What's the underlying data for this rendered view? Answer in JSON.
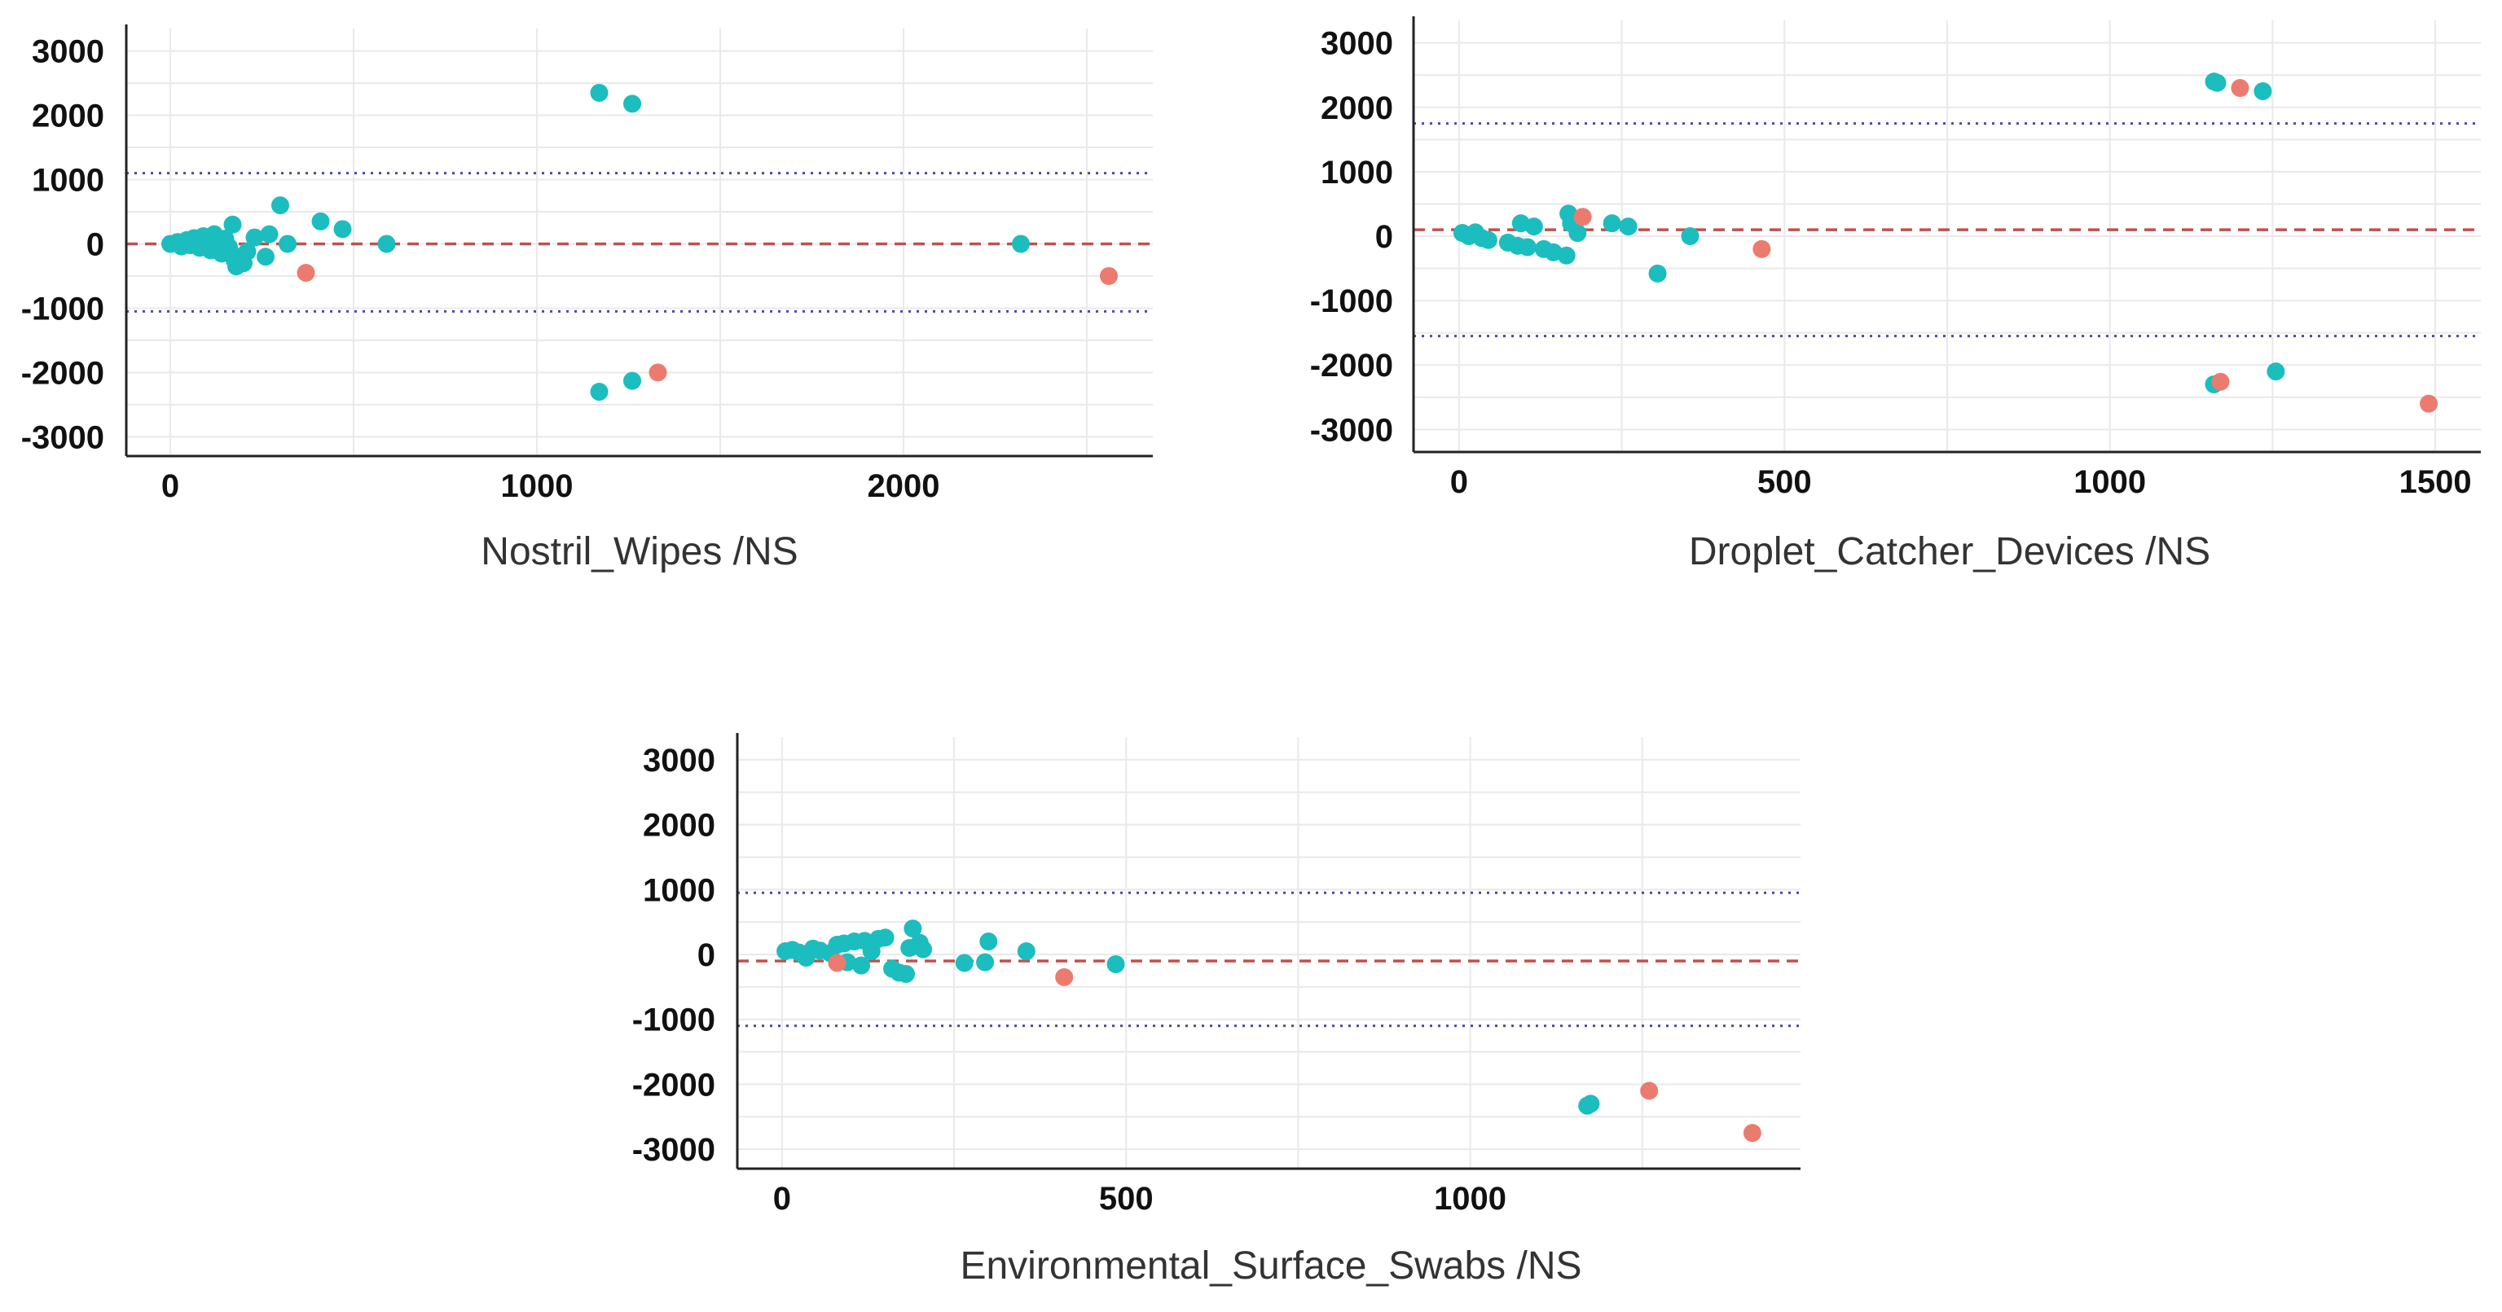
{
  "colors": {
    "series_a": "#1cbdbe",
    "series_b": "#ec7b6f",
    "mean_line": "#c0504d",
    "limit_line": "#4a4aa0",
    "grid": "#e9e9e9",
    "axis": "#222222"
  },
  "chart_data": [
    {
      "type": "scatter",
      "title": "",
      "xlabel": "Nostril_Wipes /NS",
      "ylabel": "",
      "xlim": [
        -120,
        2680
      ],
      "ylim": [
        -3300,
        3350
      ],
      "xticks": [
        {
          "v": 0,
          "label": "0"
        },
        {
          "v": 1000,
          "label": "1000"
        },
        {
          "v": 2000,
          "label": "2000"
        }
      ],
      "yticks": [
        {
          "v": 3000,
          "label": "3000"
        },
        {
          "v": 2000,
          "label": "2000"
        },
        {
          "v": 1000,
          "label": "1000"
        },
        {
          "v": 0,
          "label": "0"
        },
        {
          "v": -1000,
          "label": "-1000"
        },
        {
          "v": -2000,
          "label": "-2000"
        },
        {
          "v": -3000,
          "label": "-3000"
        }
      ],
      "mean_difference": 0,
      "limits_of_agreement": [
        1100,
        -1050
      ],
      "series": [
        {
          "name": "group_a",
          "color_key": "series_a",
          "points": [
            [
              0,
              0
            ],
            [
              20,
              30
            ],
            [
              30,
              -40
            ],
            [
              45,
              60
            ],
            [
              55,
              -20
            ],
            [
              65,
              90
            ],
            [
              80,
              -60
            ],
            [
              90,
              120
            ],
            [
              100,
              40
            ],
            [
              110,
              -100
            ],
            [
              120,
              150
            ],
            [
              130,
              20
            ],
            [
              140,
              -150
            ],
            [
              150,
              80
            ],
            [
              160,
              -50
            ],
            [
              170,
              300
            ],
            [
              175,
              -250
            ],
            [
              180,
              -350
            ],
            [
              190,
              -200
            ],
            [
              200,
              -300
            ],
            [
              210,
              -120
            ],
            [
              230,
              100
            ],
            [
              260,
              -200
            ],
            [
              270,
              150
            ],
            [
              300,
              600
            ],
            [
              320,
              0
            ],
            [
              410,
              350
            ],
            [
              470,
              230
            ],
            [
              590,
              0
            ],
            [
              1170,
              2350
            ],
            [
              1260,
              2180
            ],
            [
              1170,
              -2300
            ],
            [
              1260,
              -2130
            ],
            [
              2320,
              0
            ]
          ]
        },
        {
          "name": "group_b",
          "color_key": "series_b",
          "points": [
            [
              370,
              -450
            ],
            [
              1330,
              -2000
            ],
            [
              2560,
              -500
            ]
          ]
        }
      ]
    },
    {
      "type": "scatter",
      "title": "",
      "xlabel": "Droplet_Catcher_Devices /NS",
      "ylabel": "",
      "xlim": [
        -70,
        1570
      ],
      "ylim": [
        -3350,
        3350
      ],
      "xticks": [
        {
          "v": 0,
          "label": "0"
        },
        {
          "v": 500,
          "label": "500"
        },
        {
          "v": 1000,
          "label": "1000"
        },
        {
          "v": 1500,
          "label": "1500"
        }
      ],
      "yticks": [
        {
          "v": 3000,
          "label": "3000"
        },
        {
          "v": 2000,
          "label": "2000"
        },
        {
          "v": 1000,
          "label": "1000"
        },
        {
          "v": 0,
          "label": "0"
        },
        {
          "v": -1000,
          "label": "-1000"
        },
        {
          "v": -2000,
          "label": "-2000"
        },
        {
          "v": -3000,
          "label": "-3000"
        }
      ],
      "mean_difference": 100,
      "limits_of_agreement": [
        1750,
        -1550
      ],
      "series": [
        {
          "name": "group_a",
          "color_key": "series_a",
          "points": [
            [
              5,
              50
            ],
            [
              15,
              0
            ],
            [
              25,
              60
            ],
            [
              35,
              -30
            ],
            [
              45,
              -60
            ],
            [
              75,
              -100
            ],
            [
              90,
              -150
            ],
            [
              95,
              200
            ],
            [
              105,
              -170
            ],
            [
              115,
              150
            ],
            [
              130,
              -200
            ],
            [
              145,
              -250
            ],
            [
              165,
              -300
            ],
            [
              168,
              350
            ],
            [
              172,
              200
            ],
            [
              182,
              50
            ],
            [
              235,
              200
            ],
            [
              260,
              150
            ],
            [
              305,
              -580
            ],
            [
              355,
              0
            ],
            [
              1160,
              2400
            ],
            [
              1165,
              2380
            ],
            [
              1235,
              2250
            ],
            [
              1160,
              -2300
            ],
            [
              1255,
              -2100
            ]
          ]
        },
        {
          "name": "group_b",
          "color_key": "series_b",
          "points": [
            [
              190,
              300
            ],
            [
              465,
              -200
            ],
            [
              1200,
              2300
            ],
            [
              1170,
              -2260
            ],
            [
              1490,
              -2600
            ]
          ]
        }
      ]
    },
    {
      "type": "scatter",
      "title": "",
      "xlabel": "Environmental_Surface_Swabs /NS",
      "ylabel": "",
      "xlim": [
        -65,
        1480
      ],
      "ylim": [
        -3300,
        3350
      ],
      "xticks": [
        {
          "v": 0,
          "label": "0"
        },
        {
          "v": 500,
          "label": "500"
        },
        {
          "v": 1000,
          "label": "1000"
        }
      ],
      "yticks": [
        {
          "v": 3000,
          "label": "3000"
        },
        {
          "v": 2000,
          "label": "2000"
        },
        {
          "v": 1000,
          "label": "1000"
        },
        {
          "v": 0,
          "label": "0"
        },
        {
          "v": -1000,
          "label": "-1000"
        },
        {
          "v": -2000,
          "label": "-2000"
        },
        {
          "v": -3000,
          "label": "-3000"
        }
      ],
      "mean_difference": -100,
      "limits_of_agreement": [
        950,
        -1100
      ],
      "series": [
        {
          "name": "group_a",
          "color_key": "series_a",
          "points": [
            [
              5,
              50
            ],
            [
              15,
              70
            ],
            [
              25,
              30
            ],
            [
              35,
              -50
            ],
            [
              45,
              90
            ],
            [
              55,
              60
            ],
            [
              70,
              20
            ],
            [
              80,
              150
            ],
            [
              90,
              170
            ],
            [
              95,
              -120
            ],
            [
              105,
              200
            ],
            [
              115,
              -170
            ],
            [
              120,
              210
            ],
            [
              130,
              50
            ],
            [
              140,
              240
            ],
            [
              150,
              260
            ],
            [
              160,
              -220
            ],
            [
              170,
              -280
            ],
            [
              180,
              -300
            ],
            [
              185,
              100
            ],
            [
              190,
              400
            ],
            [
              200,
              180
            ],
            [
              205,
              80
            ],
            [
              265,
              -130
            ],
            [
              295,
              -120
            ],
            [
              300,
              200
            ],
            [
              355,
              50
            ],
            [
              485,
              -150
            ],
            [
              1175,
              -2300
            ],
            [
              1170,
              -2330
            ]
          ]
        },
        {
          "name": "group_b",
          "color_key": "series_b",
          "points": [
            [
              80,
              -130
            ],
            [
              410,
              -350
            ],
            [
              1260,
              -2100
            ],
            [
              1410,
              -2750
            ]
          ]
        }
      ]
    }
  ]
}
